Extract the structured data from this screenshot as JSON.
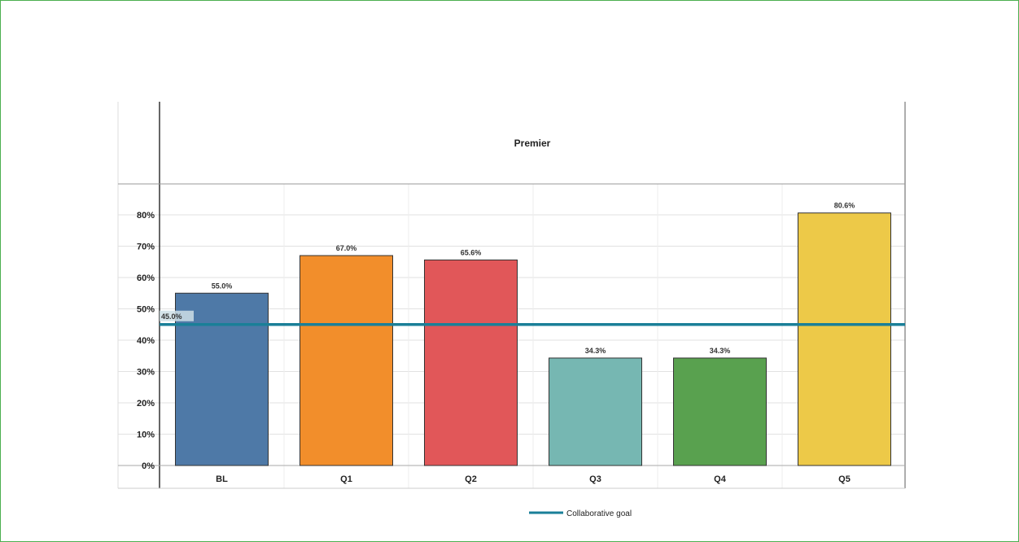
{
  "chart_data": {
    "type": "bar",
    "title": "Premier",
    "categories": [
      "BL",
      "Q1",
      "Q2",
      "Q3",
      "Q4",
      "Q5"
    ],
    "series": [
      {
        "values": [
          55.0,
          67.0,
          65.6,
          34.3,
          34.3,
          80.6
        ]
      }
    ],
    "value_labels": [
      "55.0%",
      "67.0%",
      "65.6%",
      "34.3%",
      "34.3%",
      "80.6%"
    ],
    "colors": [
      "#4e79a7",
      "#f28e2b",
      "#e15759",
      "#76b7b2",
      "#59a14f",
      "#edc948"
    ],
    "reference_line": {
      "name": "Collaborative goal",
      "value": 45.0,
      "label": "45.0%",
      "color": "#1a7f98"
    },
    "y_ticks": [
      0,
      10,
      20,
      30,
      40,
      50,
      60,
      70,
      80
    ],
    "y_tick_labels": [
      "0%",
      "10%",
      "20%",
      "30%",
      "40%",
      "50%",
      "60%",
      "70%",
      "80%"
    ],
    "ylim": [
      0,
      90
    ],
    "xlabel": "",
    "ylabel": "",
    "grid": true,
    "legend": "bottom-center"
  }
}
